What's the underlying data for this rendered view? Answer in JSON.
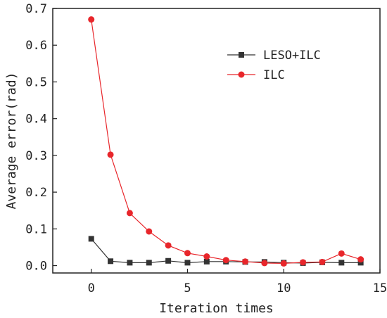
{
  "chart_data": {
    "type": "line",
    "title": "",
    "xlabel": "Iteration times",
    "ylabel": "Average error(rad)",
    "xlim": [
      -2,
      15
    ],
    "ylim": [
      -0.02,
      0.7
    ],
    "xticks": [
      0,
      5,
      10,
      15
    ],
    "xtick_labels": [
      "0",
      "5",
      "10",
      "15"
    ],
    "yticks": [
      0.0,
      0.1,
      0.2,
      0.3,
      0.4,
      0.5,
      0.6,
      0.7
    ],
    "ytick_labels": [
      "0.0",
      "0.1",
      "0.2",
      "0.3",
      "0.4",
      "0.5",
      "0.6",
      "0.7"
    ],
    "grid": false,
    "legend_position": "top-right",
    "x": [
      0,
      1,
      2,
      3,
      4,
      5,
      6,
      7,
      8,
      9,
      10,
      11,
      12,
      13,
      14
    ],
    "series": [
      {
        "name": "LESO+ILC",
        "color": "#333333",
        "marker": "square",
        "values": [
          0.073,
          0.012,
          0.008,
          0.008,
          0.013,
          0.008,
          0.011,
          0.011,
          0.01,
          0.01,
          0.008,
          0.007,
          0.009,
          0.008,
          0.008
        ]
      },
      {
        "name": "ILC",
        "color": "#e8262b",
        "marker": "circle",
        "values": [
          0.67,
          0.302,
          0.143,
          0.093,
          0.055,
          0.034,
          0.025,
          0.015,
          0.011,
          0.007,
          0.006,
          0.009,
          0.01,
          0.033,
          0.017
        ]
      }
    ]
  }
}
